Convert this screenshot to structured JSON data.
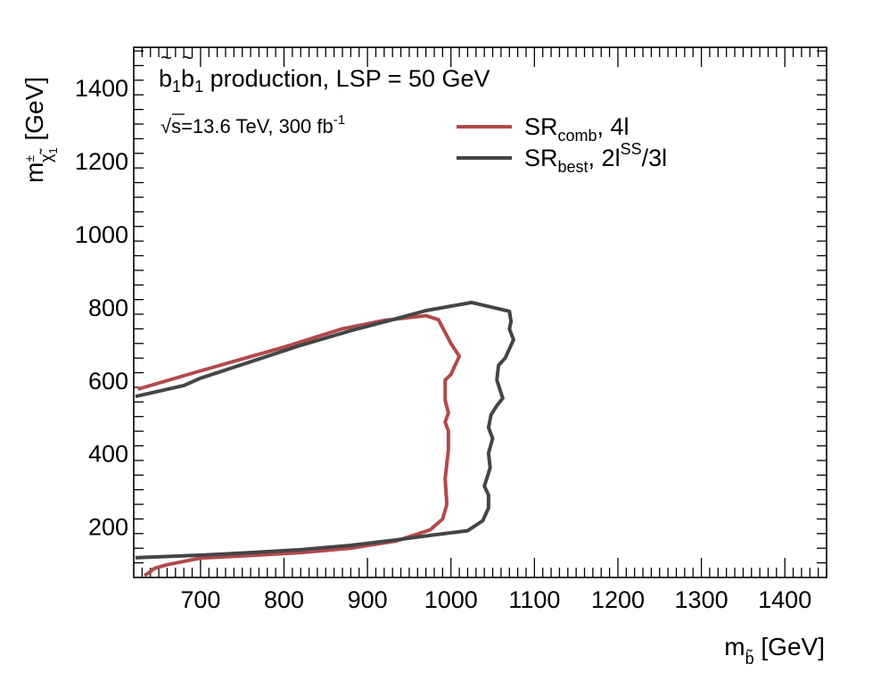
{
  "chart_data": {
    "type": "line",
    "title": "",
    "xlabel": {
      "main": "m",
      "sub": "b̃",
      "unit": " [GeV]"
    },
    "ylabel": {
      "main": "m",
      "sub": "χ̃",
      "sup": "±",
      "subsub": "1",
      "unit": " [GeV]"
    },
    "xlim": [
      620,
      1450
    ],
    "ylim": [
      60,
      1510
    ],
    "x_ticks": [
      700,
      800,
      900,
      1000,
      1100,
      1200,
      1300,
      1400
    ],
    "y_ticks": [
      200,
      400,
      600,
      800,
      1000,
      1200,
      1400
    ],
    "x_tick_labels": [
      "700",
      "800",
      "900",
      "1000",
      "1100",
      "1200",
      "1300",
      "1400"
    ],
    "y_tick_labels": [
      "200",
      "400",
      "600",
      "800",
      "1000",
      "1200",
      "1400"
    ],
    "annotations": {
      "process": {
        "pre": "b",
        "sub1": "1",
        "mid": "b",
        "sub2": "1",
        "post": " production, LSP = 50 GeV"
      },
      "energy": {
        "sqrt": "√",
        "s": "s=13.6 TeV, 300 fb",
        "sup": "-1"
      }
    },
    "series": [
      {
        "name": "SR_comb, 4l",
        "legend": {
          "main": "SR",
          "sub": "comb",
          "rest": ", 4l"
        },
        "color": "#b24a4a",
        "points": [
          [
            625,
            575
          ],
          [
            700,
            625
          ],
          [
            800,
            690
          ],
          [
            870,
            740
          ],
          [
            920,
            763
          ],
          [
            970,
            776
          ],
          [
            985,
            765
          ],
          [
            1000,
            700
          ],
          [
            1010,
            665
          ],
          [
            1000,
            615
          ],
          [
            993,
            600
          ],
          [
            993,
            545
          ],
          [
            997,
            510
          ],
          [
            993,
            485
          ],
          [
            997,
            460
          ],
          [
            997,
            410
          ],
          [
            993,
            330
          ],
          [
            995,
            260
          ],
          [
            990,
            220
          ],
          [
            975,
            190
          ],
          [
            935,
            160
          ],
          [
            880,
            140
          ],
          [
            820,
            128
          ],
          [
            760,
            120
          ],
          [
            700,
            113
          ],
          [
            660,
            95
          ],
          [
            645,
            85
          ],
          [
            633,
            65
          ]
        ]
      },
      {
        "name": "SR_best, 2l^SS/3l",
        "legend": {
          "main": "SR",
          "sub": "best",
          "mid": ", 2l",
          "sup": "SS",
          "rest": "/3l"
        },
        "color": "#454545",
        "points": [
          [
            622,
            555
          ],
          [
            680,
            585
          ],
          [
            700,
            605
          ],
          [
            760,
            650
          ],
          [
            820,
            695
          ],
          [
            880,
            735
          ],
          [
            930,
            765
          ],
          [
            970,
            790
          ],
          [
            1025,
            812
          ],
          [
            1070,
            788
          ],
          [
            1072,
            760
          ],
          [
            1070,
            740
          ],
          [
            1075,
            710
          ],
          [
            1065,
            660
          ],
          [
            1057,
            640
          ],
          [
            1055,
            600
          ],
          [
            1062,
            550
          ],
          [
            1055,
            530
          ],
          [
            1048,
            505
          ],
          [
            1045,
            470
          ],
          [
            1050,
            440
          ],
          [
            1045,
            400
          ],
          [
            1047,
            360
          ],
          [
            1040,
            310
          ],
          [
            1045,
            285
          ],
          [
            1045,
            250
          ],
          [
            1038,
            215
          ],
          [
            1020,
            188
          ],
          [
            975,
            175
          ],
          [
            935,
            163
          ],
          [
            880,
            148
          ],
          [
            820,
            136
          ],
          [
            760,
            128
          ],
          [
            700,
            121
          ],
          [
            622,
            114
          ]
        ]
      }
    ]
  }
}
